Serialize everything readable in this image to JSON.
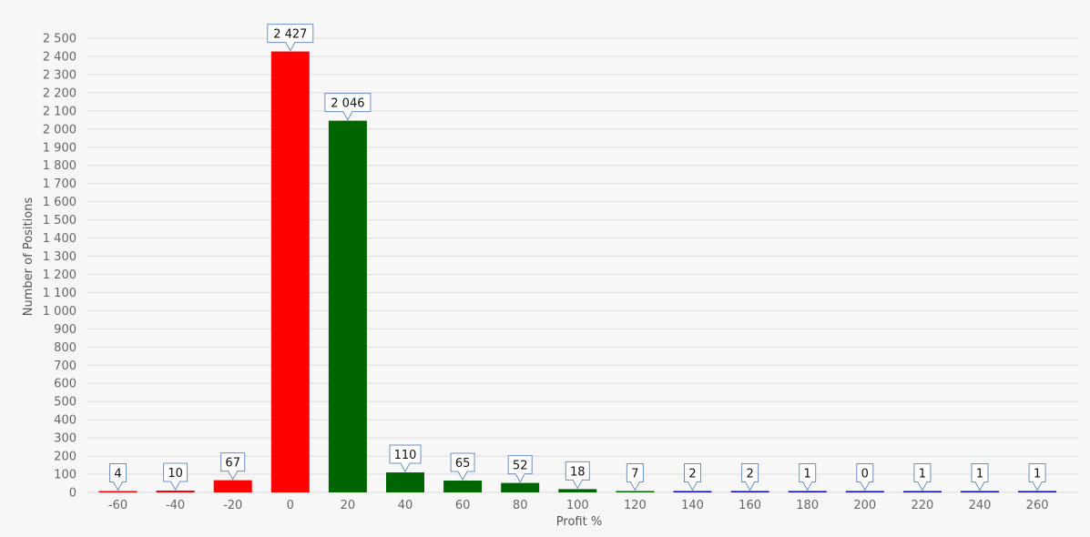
{
  "chart_data": {
    "type": "bar",
    "xlabel": "Profit %",
    "ylabel": "Number of Positions",
    "ylim": [
      0,
      2500
    ],
    "ytick_step": 100,
    "grid": true,
    "categories": [
      "-60",
      "-40",
      "-20",
      "0",
      "20",
      "40",
      "60",
      "80",
      "100",
      "120",
      "140",
      "160",
      "180",
      "200",
      "220",
      "240",
      "260"
    ],
    "values": [
      4,
      10,
      67,
      2427,
      2046,
      110,
      65,
      52,
      18,
      7,
      2,
      2,
      1,
      0,
      1,
      1,
      1
    ],
    "data_labels": [
      "4",
      "10",
      "67",
      "2 427",
      "2 046",
      "110",
      "65",
      "52",
      "18",
      "7",
      "2",
      "2",
      "1",
      "0",
      "1",
      "1",
      "1"
    ],
    "bar_colors": [
      "#ff0000",
      "#ff0000",
      "#ff0000",
      "#ff0000",
      "#006400",
      "#006400",
      "#006400",
      "#006400",
      "#006400",
      "#006400",
      "#0000cd",
      "#0000cd",
      "#0000cd",
      "#0000cd",
      "#0000cd",
      "#0000cd",
      "#0000cd"
    ],
    "label_border_color": "#6f8fbf"
  }
}
